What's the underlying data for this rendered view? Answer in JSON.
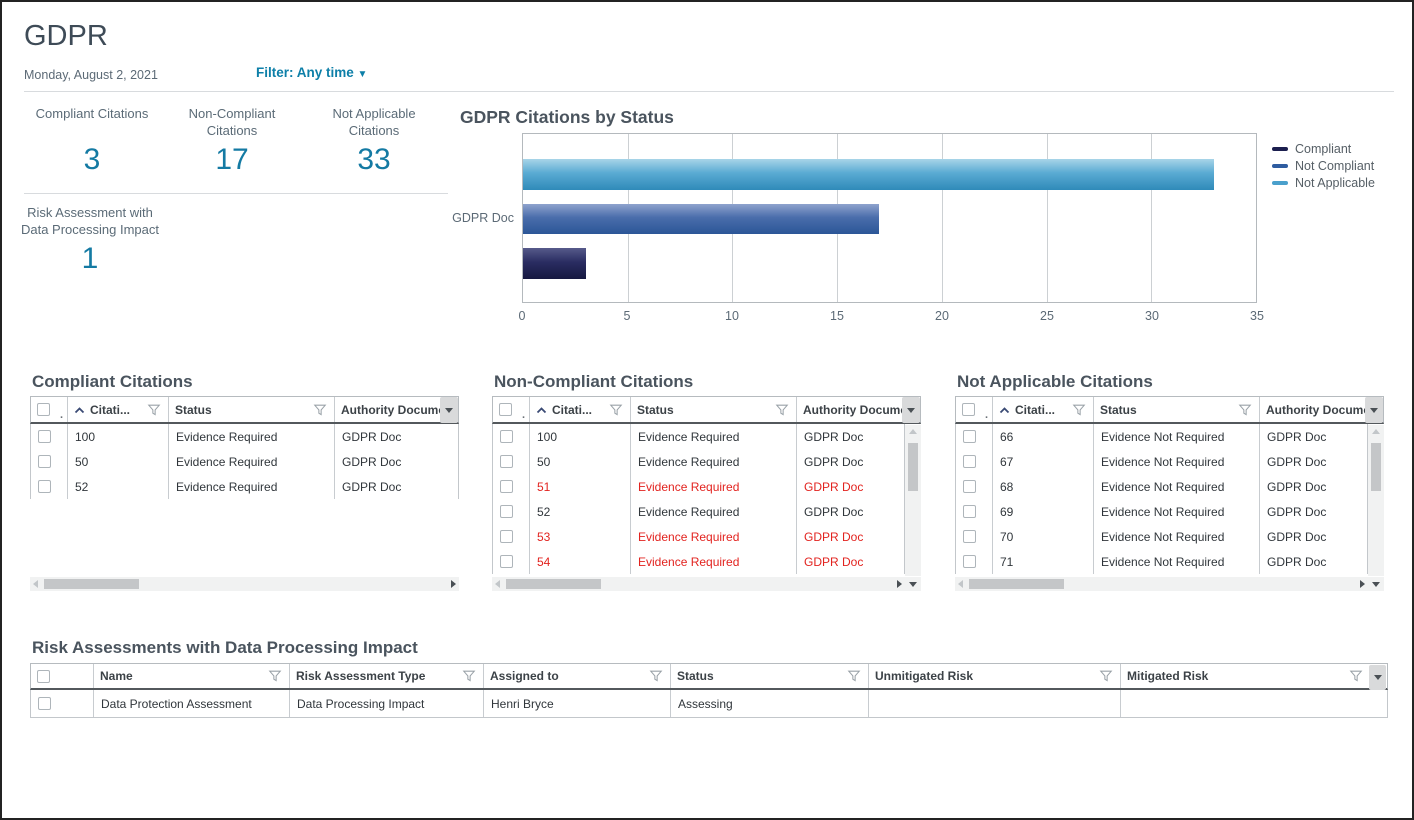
{
  "header": {
    "title": "GDPR",
    "date": "Monday, August 2, 2021",
    "filter": "Filter: Any time",
    "filter_caret": "▼"
  },
  "kpis": {
    "items": [
      {
        "label": "Compliant Citations",
        "value": "3"
      },
      {
        "label": "Non-Compliant\nCitations",
        "value": "17"
      },
      {
        "label": "Not Applicable\nCitations",
        "value": "33"
      },
      {
        "label": "Risk Assessment with\nData Processing Impact",
        "value": "1"
      }
    ]
  },
  "chart_data": {
    "type": "bar",
    "orientation": "horizontal",
    "title": "GDPR Citations by Status",
    "categories": [
      "GDPR Doc"
    ],
    "ylabel": "GDPR Doc",
    "series": [
      {
        "name": "Compliant",
        "values": [
          3
        ],
        "color": "#1b1e4e",
        "color_top": "#565a8a",
        "color_mid": "#2a2d62",
        "color_bottom": "#161840"
      },
      {
        "name": "Not Compliant",
        "values": [
          17
        ],
        "color": "#2e5ca0",
        "color_top": "#8fa3cd",
        "color_mid": "#4a6dab",
        "color_bottom": "#2b5697"
      },
      {
        "name": "Not Applicable",
        "values": [
          33
        ],
        "color": "#4aa0cc",
        "color_top": "#a8d4e8",
        "color_mid": "#5aabd3",
        "color_bottom": "#2f8ab9"
      }
    ],
    "xlim": [
      0,
      35
    ],
    "xticks": [
      "0",
      "5",
      "10",
      "15",
      "20",
      "25",
      "30",
      "35"
    ],
    "grid": true,
    "legend_position": "right"
  },
  "citation_tables": [
    {
      "title": "Compliant Citations",
      "columns": {
        "citation": "Citati...",
        "status": "Status",
        "authority": "Authority Docume"
      },
      "rows": [
        {
          "citation": "100",
          "status": "Evidence Required",
          "authority": "GDPR Doc",
          "red": false
        },
        {
          "citation": "50",
          "status": "Evidence Required",
          "authority": "GDPR Doc",
          "red": false
        },
        {
          "citation": "52",
          "status": "Evidence Required",
          "authority": "GDPR Doc",
          "red": false
        }
      ]
    },
    {
      "title": "Non-Compliant Citations",
      "columns": {
        "citation": "Citati...",
        "status": "Status",
        "authority": "Authority Docume"
      },
      "rows": [
        {
          "citation": "100",
          "status": "Evidence Required",
          "authority": "GDPR Doc",
          "red": false
        },
        {
          "citation": "50",
          "status": "Evidence Required",
          "authority": "GDPR Doc",
          "red": false
        },
        {
          "citation": "51",
          "status": "Evidence Required",
          "authority": "GDPR Doc",
          "red": true
        },
        {
          "citation": "52",
          "status": "Evidence Required",
          "authority": "GDPR Doc",
          "red": false
        },
        {
          "citation": "53",
          "status": "Evidence Required",
          "authority": "GDPR Doc",
          "red": true
        },
        {
          "citation": "54",
          "status": "Evidence Required",
          "authority": "GDPR Doc",
          "red": true
        }
      ]
    },
    {
      "title": "Not Applicable Citations",
      "columns": {
        "citation": "Citati...",
        "status": "Status",
        "authority": "Authority Docume"
      },
      "rows": [
        {
          "citation": "66",
          "status": "Evidence Not Required",
          "authority": "GDPR Doc",
          "red": false
        },
        {
          "citation": "67",
          "status": "Evidence Not Required",
          "authority": "GDPR Doc",
          "red": false
        },
        {
          "citation": "68",
          "status": "Evidence Not Required",
          "authority": "GDPR Doc",
          "red": false
        },
        {
          "citation": "69",
          "status": "Evidence Not Required",
          "authority": "GDPR Doc",
          "red": false
        },
        {
          "citation": "70",
          "status": "Evidence Not Required",
          "authority": "GDPR Doc",
          "red": false
        },
        {
          "citation": "71",
          "status": "Evidence Not Required",
          "authority": "GDPR Doc",
          "red": false
        }
      ]
    }
  ],
  "risk_table": {
    "title": "Risk Assessments with Data Processing Impact",
    "columns": [
      "Name",
      "Risk Assessment Type",
      "Assigned to",
      "Status",
      "Unmitigated Risk",
      "Mitigated Risk"
    ],
    "rows": [
      {
        "name": "Data Protection Assessment",
        "type": "Data Processing Impact",
        "assigned_to": "Henri Bryce",
        "status": "Assessing",
        "unmitigated_risk": "",
        "mitigated_risk": ""
      }
    ]
  }
}
